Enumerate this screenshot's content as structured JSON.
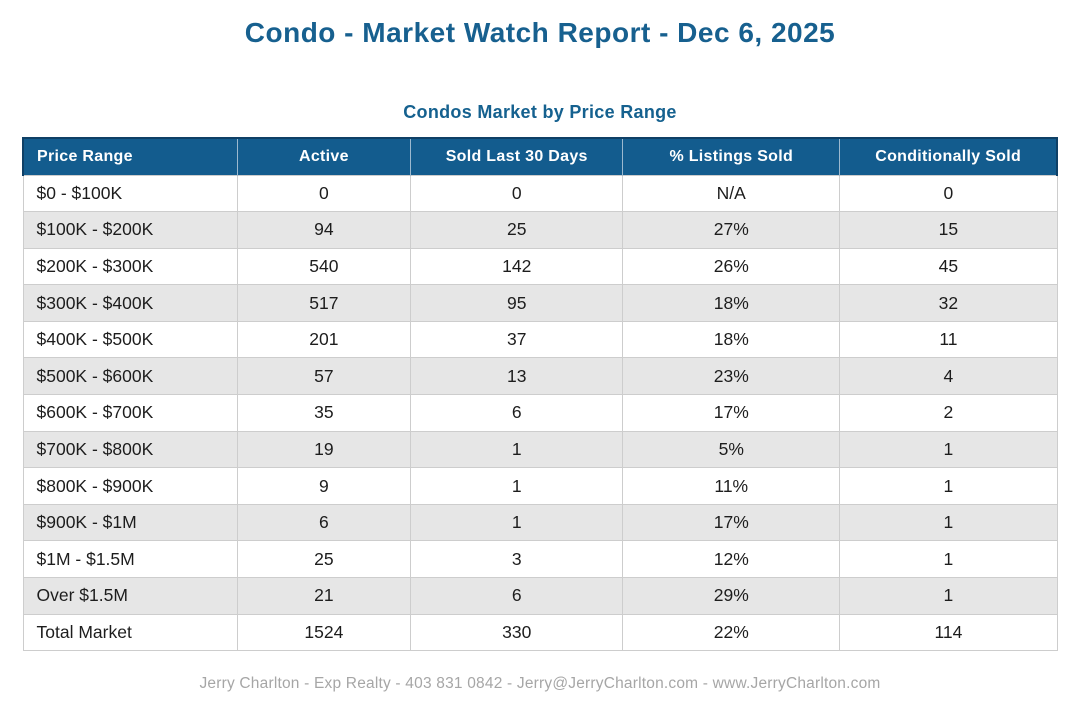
{
  "page": {
    "title": "Condo - Market Watch Report - Dec 6, 2025",
    "subtitle": "Condos Market by Price Range",
    "footer": "Jerry Charlton - Exp Realty - 403 831 0842 - Jerry@JerryCharlton.com - www.JerryCharlton.com"
  },
  "colors": {
    "title_blue": "#17608f",
    "header_background": "#135c8e",
    "header_text": "#ffffff",
    "header_outline": "#0f4066",
    "row_stripe": "#e6e6e6",
    "cell_border": "#cdcdcd",
    "body_text": "#1d1d1d",
    "footer_text": "#a6a6a6"
  },
  "chart_data": {
    "type": "table",
    "title": "Condos Market by Price Range",
    "columns": [
      "Price Range",
      "Active",
      "Sold Last 30 Days",
      "% Listings Sold",
      "Conditionally Sold"
    ],
    "rows": [
      [
        "$0 - $100K",
        "0",
        "0",
        "N/A",
        "0"
      ],
      [
        "$100K - $200K",
        "94",
        "25",
        "27%",
        "15"
      ],
      [
        "$200K - $300K",
        "540",
        "142",
        "26%",
        "45"
      ],
      [
        "$300K - $400K",
        "517",
        "95",
        "18%",
        "32"
      ],
      [
        "$400K - $500K",
        "201",
        "37",
        "18%",
        "11"
      ],
      [
        "$500K - $600K",
        "57",
        "13",
        "23%",
        "4"
      ],
      [
        "$600K - $700K",
        "35",
        "6",
        "17%",
        "2"
      ],
      [
        "$700K - $800K",
        "19",
        "1",
        "5%",
        "1"
      ],
      [
        "$800K - $900K",
        "9",
        "1",
        "11%",
        "1"
      ],
      [
        "$900K - $1M",
        "6",
        "1",
        "17%",
        "1"
      ],
      [
        "$1M - $1.5M",
        "25",
        "3",
        "12%",
        "1"
      ],
      [
        "Over $1.5M",
        "21",
        "6",
        "29%",
        "1"
      ],
      [
        "Total Market",
        "1524",
        "330",
        "22%",
        "114"
      ]
    ]
  }
}
